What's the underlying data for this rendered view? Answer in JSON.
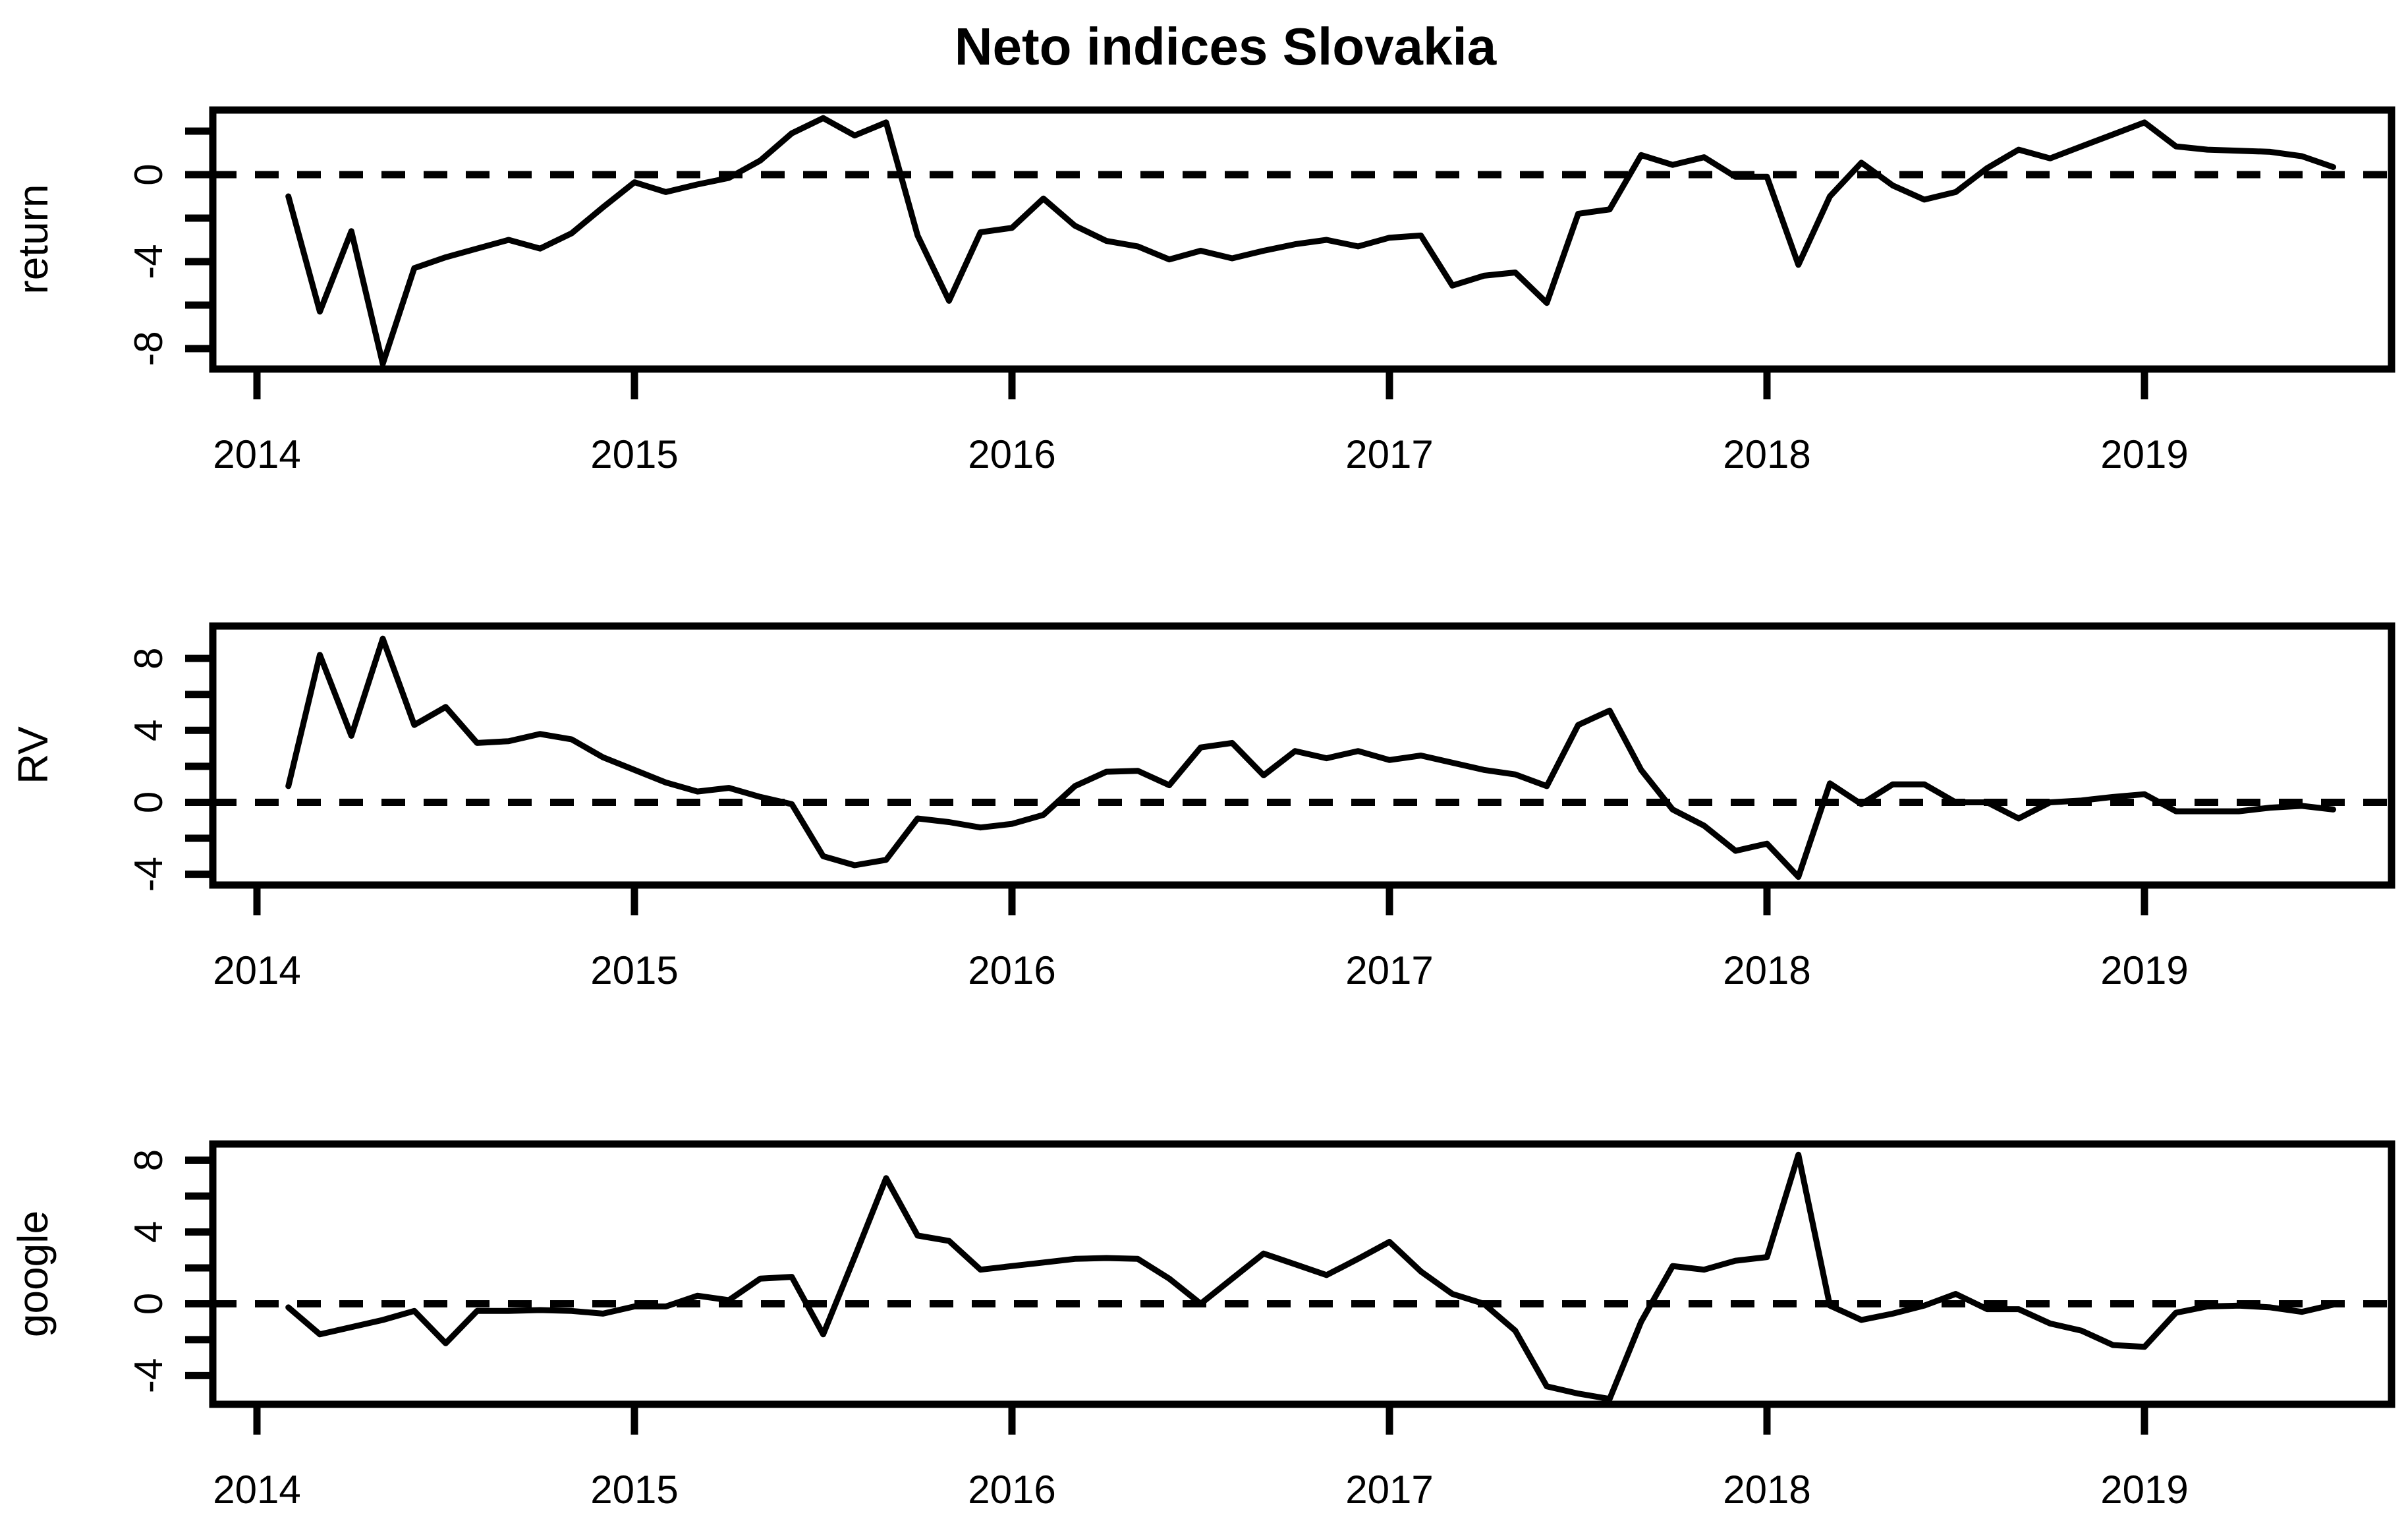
{
  "title": "Neto indices Slovakia",
  "colors": {
    "background": "#ffffff",
    "line": "#000000",
    "axis": "#000000"
  },
  "x_axis": {
    "start": "2014-02",
    "points_per_year": 12,
    "n_points": 66,
    "tick_labels": [
      "2014",
      "2015",
      "2016",
      "2017",
      "2018",
      "2019"
    ],
    "tick_values": [
      2014,
      2015,
      2016,
      2017,
      2018,
      2019
    ],
    "xlim": [
      2013.86,
      2019.62
    ]
  },
  "chart_data": [
    {
      "type": "line",
      "name": "return",
      "ylabel": "return",
      "ylim": [
        -8.94,
        2.97
      ],
      "yticks": [
        {
          "v": 2,
          "label": ""
        },
        {
          "v": 0,
          "label": "0"
        },
        {
          "v": -2,
          "label": ""
        },
        {
          "v": -4,
          "label": "-4"
        },
        {
          "v": -6,
          "label": ""
        },
        {
          "v": -8,
          "label": "-8"
        }
      ],
      "zero_line": "dashed",
      "values": [
        -1.0,
        -6.3,
        -2.6,
        -8.7,
        -4.3,
        -3.8,
        -3.4,
        -3.0,
        -3.4,
        -2.7,
        -1.5,
        -0.35,
        -0.8,
        -0.45,
        -0.15,
        0.65,
        1.9,
        2.6,
        1.8,
        2.4,
        -2.8,
        -5.8,
        -2.65,
        -2.45,
        -1.1,
        -2.35,
        -3.05,
        -3.3,
        -3.9,
        -3.5,
        -3.85,
        -3.5,
        -3.2,
        -3.0,
        -3.3,
        -2.9,
        -2.8,
        -5.1,
        -4.65,
        -4.5,
        -5.9,
        -1.8,
        -1.6,
        0.9,
        0.45,
        0.8,
        -0.1,
        -0.1,
        -4.15,
        -1.0,
        0.55,
        -0.5,
        -1.15,
        -0.8,
        0.3,
        1.15,
        0.75,
        1.3,
        1.85,
        2.4,
        1.3,
        1.15,
        1.1,
        1.05,
        0.85,
        0.35
      ]
    },
    {
      "type": "line",
      "name": "RV",
      "ylabel": "RV",
      "ylim": [
        -4.6,
        9.8
      ],
      "yticks": [
        {
          "v": 8,
          "label": "8"
        },
        {
          "v": 6,
          "label": ""
        },
        {
          "v": 4,
          "label": "4"
        },
        {
          "v": 2,
          "label": ""
        },
        {
          "v": 0,
          "label": "0"
        },
        {
          "v": -2,
          "label": ""
        },
        {
          "v": -4,
          "label": "-4"
        }
      ],
      "zero_line": "dashed",
      "values": [
        0.9,
        8.2,
        3.7,
        9.1,
        4.3,
        5.3,
        3.3,
        3.4,
        3.8,
        3.5,
        2.5,
        1.8,
        1.1,
        0.6,
        0.8,
        0.3,
        -0.1,
        -3.0,
        -3.5,
        -3.2,
        -0.9,
        -1.1,
        -1.4,
        -1.2,
        -0.7,
        0.9,
        1.7,
        1.75,
        0.95,
        3.05,
        3.3,
        1.5,
        2.85,
        2.45,
        2.85,
        2.35,
        2.6,
        2.2,
        1.8,
        1.55,
        0.9,
        4.3,
        5.1,
        1.8,
        -0.4,
        -1.3,
        -2.7,
        -2.3,
        -4.15,
        1.05,
        -0.1,
        1.0,
        1.0,
        0.0,
        0.0,
        -0.9,
        0.0,
        0.1,
        0.3,
        0.45,
        -0.5,
        -0.5,
        -0.5,
        -0.3,
        -0.2,
        -0.4
      ]
    },
    {
      "type": "line",
      "name": "google",
      "ylabel": "google",
      "ylim": [
        -5.6,
        8.9
      ],
      "yticks": [
        {
          "v": 8,
          "label": "8"
        },
        {
          "v": 6,
          "label": ""
        },
        {
          "v": 4,
          "label": "4"
        },
        {
          "v": 2,
          "label": ""
        },
        {
          "v": 0,
          "label": "0"
        },
        {
          "v": -2,
          "label": ""
        },
        {
          "v": -4,
          "label": "-4"
        }
      ],
      "zero_line": "dashed",
      "values": [
        -0.2,
        -1.7,
        -1.3,
        -0.9,
        -0.4,
        -2.2,
        -0.4,
        -0.4,
        -0.35,
        -0.4,
        -0.55,
        -0.15,
        -0.15,
        0.45,
        0.2,
        1.4,
        1.5,
        -1.7,
        2.6,
        7.0,
        3.8,
        3.5,
        1.9,
        2.1,
        2.3,
        2.5,
        2.55,
        2.5,
        1.4,
        0.0,
        1.4,
        2.8,
        2.2,
        1.6,
        2.5,
        3.45,
        1.8,
        0.55,
        0.0,
        -1.5,
        -4.6,
        -5.0,
        -5.3,
        -1.0,
        2.1,
        1.9,
        2.4,
        2.6,
        8.3,
        -0.1,
        -0.9,
        -0.55,
        -0.1,
        0.55,
        -0.3,
        -0.3,
        -1.1,
        -1.5,
        -2.3,
        -2.4,
        -0.5,
        -0.15,
        -0.1,
        -0.2,
        -0.45,
        -0.05
      ]
    }
  ]
}
